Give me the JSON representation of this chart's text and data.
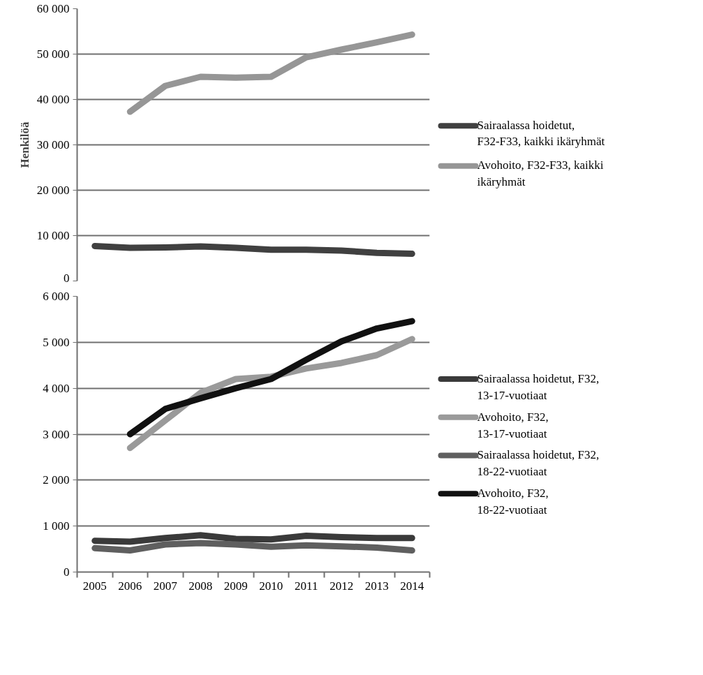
{
  "chart_data": [
    {
      "type": "line",
      "ylabel": "Henkilöä",
      "categories": [
        "2005",
        "2006",
        "2007",
        "2008",
        "2009",
        "2010",
        "2011",
        "2012",
        "2013",
        "2014"
      ],
      "ylim": [
        0,
        60000
      ],
      "yticks": [
        {
          "value": 0,
          "label": "0"
        },
        {
          "value": 10000,
          "label": "10 000"
        },
        {
          "value": 20000,
          "label": "20 000"
        },
        {
          "value": 30000,
          "label": "30 000"
        },
        {
          "value": 40000,
          "label": "40 000"
        },
        {
          "value": 50000,
          "label": "50 000"
        },
        {
          "value": 60000,
          "label": "60 000"
        }
      ],
      "grid": "y",
      "legend": "right",
      "tick_labels": "y",
      "marker": "none",
      "line_style": "solid",
      "series": [
        {
          "name": "Sairaalassa hoidetut, F32-F33, kaikki ikäryhmät",
          "color": "#404040",
          "values": [
            7700,
            7300,
            7400,
            7600,
            7300,
            6900,
            6900,
            6700,
            6200,
            6000
          ]
        },
        {
          "name": "Avohoito, F32-F33, kaikki ikäryhmät",
          "color": "#969696",
          "values": [
            null,
            37300,
            43000,
            45000,
            44800,
            45000,
            49300,
            51000,
            52600,
            54300
          ]
        }
      ]
    },
    {
      "type": "line",
      "categories": [
        "2005",
        "2006",
        "2007",
        "2008",
        "2009",
        "2010",
        "2011",
        "2012",
        "2013",
        "2014"
      ],
      "ylim": [
        0,
        6000
      ],
      "yticks": [
        {
          "value": 0,
          "label": "0"
        },
        {
          "value": 1000,
          "label": "1 000"
        },
        {
          "value": 2000,
          "label": "2 000"
        },
        {
          "value": 3000,
          "label": "3 000"
        },
        {
          "value": 4000,
          "label": "4 000"
        },
        {
          "value": 5000,
          "label": "5 000"
        },
        {
          "value": 6000,
          "label": "6 000"
        }
      ],
      "grid": "y",
      "legend": "right",
      "marker": "none",
      "line_style": "solid",
      "series": [
        {
          "name": "Sairaalassa hoidetut, F32, 13-17-vuotiaat",
          "color": "#3a3a3a",
          "values": [
            680,
            660,
            740,
            800,
            720,
            710,
            790,
            760,
            740,
            740
          ]
        },
        {
          "name": "Avohoito, F32, 13-17-vuotiaat",
          "color": "#9a9a9a",
          "values": [
            null,
            2700,
            3300,
            3900,
            4200,
            4250,
            4430,
            4550,
            4720,
            5070
          ]
        },
        {
          "name": "Sairaalassa hoidetut, F32, 18-22-vuotiaat",
          "color": "#5f5f5f",
          "values": [
            520,
            470,
            600,
            630,
            600,
            550,
            580,
            560,
            530,
            470
          ]
        },
        {
          "name": "Avohoito, F32, 18-22-vuotiaat",
          "color": "#111111",
          "values": [
            null,
            3000,
            3550,
            3780,
            4000,
            4200,
            4620,
            5020,
            5300,
            5460
          ]
        }
      ]
    }
  ]
}
